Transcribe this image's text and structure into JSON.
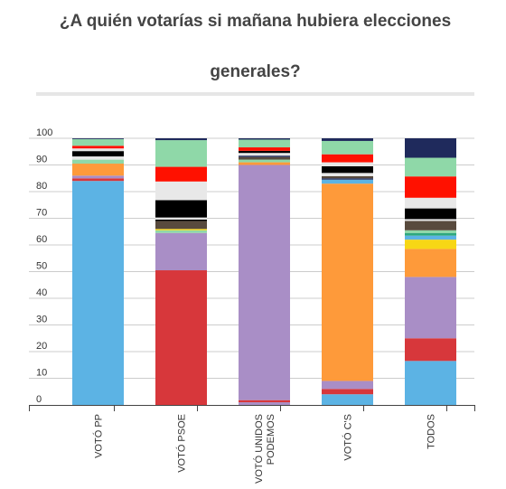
{
  "chart_data": {
    "type": "bar",
    "stacked": true,
    "title": "¿A quién votarías si mañana hubiera elecciones generales?",
    "xlabel": "",
    "ylabel": "",
    "ylim": [
      0,
      100
    ],
    "yticks": [
      "100",
      "90",
      "80",
      "70",
      "60",
      "50",
      "40",
      "30",
      "20",
      "10",
      "0"
    ],
    "grid": true,
    "legend": "none",
    "categories": [
      "VOTÓ PP",
      "VOTÓ PSOE",
      "VOTÓ UNIDOS\nPODEMOS",
      "VOTÓ C'S",
      "TODOS"
    ],
    "segments": [
      [
        {
          "value": 84.0,
          "color": "#5cb3e4"
        },
        {
          "value": 1.0,
          "color": "#d7373b"
        },
        {
          "value": 1.0,
          "color": "#a98ec6"
        },
        {
          "value": 4.5,
          "color": "#fe9a3a"
        },
        {
          "value": 1.5,
          "color": "#8fd8a8"
        },
        {
          "value": 1.2,
          "color": "#e8e8e8"
        },
        {
          "value": 2.0,
          "color": "#000000"
        },
        {
          "value": 1.0,
          "color": "#e5e5e5"
        },
        {
          "value": 1.0,
          "color": "#ff1100"
        },
        {
          "value": 2.5,
          "color": "#8fd8a8"
        },
        {
          "value": 0.3,
          "color": "#1f2a5c"
        }
      ],
      [
        {
          "value": 50.5,
          "color": "#d7373b"
        },
        {
          "value": 14.0,
          "color": "#a98ec6"
        },
        {
          "value": 1.0,
          "color": "#8fd8a8"
        },
        {
          "value": 0.5,
          "color": "#f7d715"
        },
        {
          "value": 3.0,
          "color": "#584a3d"
        },
        {
          "value": 0.5,
          "color": "#000000"
        },
        {
          "value": 0.8,
          "color": "#e5e5e5"
        },
        {
          "value": 6.5,
          "color": "#000000"
        },
        {
          "value": 7.0,
          "color": "#e8e8e8"
        },
        {
          "value": 5.5,
          "color": "#ff1100"
        },
        {
          "value": 10.0,
          "color": "#8fd8a8"
        },
        {
          "value": 0.7,
          "color": "#1f2a5c"
        }
      ],
      [
        {
          "value": 1.0,
          "color": "#a98ec6"
        },
        {
          "value": 0.8,
          "color": "#d7373b"
        },
        {
          "value": 88.2,
          "color": "#a98ec6"
        },
        {
          "value": 1.0,
          "color": "#fe9a3a"
        },
        {
          "value": 1.0,
          "color": "#8fd8a8"
        },
        {
          "value": 1.0,
          "color": "#584a3d"
        },
        {
          "value": 0.5,
          "color": "#1f2a5c"
        },
        {
          "value": 1.0,
          "color": "#e8e8e8"
        },
        {
          "value": 0.8,
          "color": "#000000"
        },
        {
          "value": 1.3,
          "color": "#ff1100"
        },
        {
          "value": 2.9,
          "color": "#8fd8a8"
        },
        {
          "value": 0.5,
          "color": "#1f2a5c"
        }
      ],
      [
        {
          "value": 4.0,
          "color": "#5cb3e4"
        },
        {
          "value": 2.0,
          "color": "#d7373b"
        },
        {
          "value": 3.0,
          "color": "#a98ec6"
        },
        {
          "value": 74.0,
          "color": "#fe9a3a"
        },
        {
          "value": 1.5,
          "color": "#5cb3e4"
        },
        {
          "value": 0.5,
          "color": "#1f2a5c"
        },
        {
          "value": 0.8,
          "color": "#584a3d"
        },
        {
          "value": 1.2,
          "color": "#e8e8e8"
        },
        {
          "value": 2.5,
          "color": "#000000"
        },
        {
          "value": 1.5,
          "color": "#e5e5e5"
        },
        {
          "value": 3.0,
          "color": "#ff1100"
        },
        {
          "value": 5.0,
          "color": "#8fd8a8"
        },
        {
          "value": 1.0,
          "color": "#1f2a5c"
        }
      ],
      [
        {
          "value": 16.5,
          "color": "#5cb3e4"
        },
        {
          "value": 8.5,
          "color": "#d7373b"
        },
        {
          "value": 23.0,
          "color": "#a98ec6"
        },
        {
          "value": 10.5,
          "color": "#fe9a3a"
        },
        {
          "value": 3.5,
          "color": "#f7d715"
        },
        {
          "value": 1.5,
          "color": "#5cb3e4"
        },
        {
          "value": 1.0,
          "color": "#2ea87e"
        },
        {
          "value": 1.0,
          "color": "#8fd8a8"
        },
        {
          "value": 3.5,
          "color": "#584a3d"
        },
        {
          "value": 0.7,
          "color": "#e5e5e5"
        },
        {
          "value": 4.0,
          "color": "#000000"
        },
        {
          "value": 4.0,
          "color": "#e8e8e8"
        },
        {
          "value": 8.0,
          "color": "#ff1100"
        },
        {
          "value": 7.0,
          "color": "#8fd8a8"
        },
        {
          "value": 7.3,
          "color": "#1f2a5c"
        }
      ]
    ]
  },
  "colors": {
    "text": "#333333",
    "title": "#444444",
    "gridline": "#cccccc",
    "axis": "#444444"
  }
}
